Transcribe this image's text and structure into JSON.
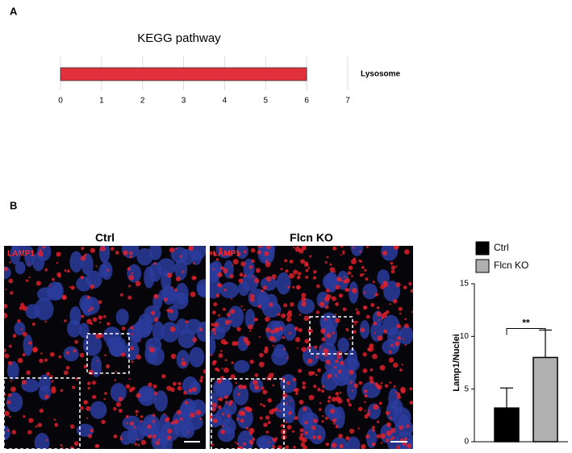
{
  "panel_labels": [
    "A",
    "B"
  ],
  "images": [
    {
      "title": "Ctrl",
      "stain": "LAMP1"
    },
    {
      "title": "Flcn KO",
      "stain": "LAMP1"
    }
  ],
  "chart_data": [
    {
      "type": "barh",
      "title": "KEGG pathway",
      "categories": [
        "Lysosome"
      ],
      "values": [
        6
      ],
      "color": "#e0313c",
      "xlim": [
        0,
        7
      ],
      "xticks": [
        0,
        1,
        2,
        3,
        4,
        5,
        6,
        7
      ],
      "grid": true
    },
    {
      "type": "bar",
      "ylabel": "Lamp1/Nuclei",
      "categories": [
        null
      ],
      "series": [
        {
          "name": "Ctrl",
          "color": "#000000",
          "values": [
            3.2
          ],
          "errors": [
            1.9
          ]
        },
        {
          "name": "Flcn KO",
          "color": "#b0b0b0",
          "values": [
            8.0
          ],
          "errors": [
            2.6
          ]
        }
      ],
      "ylim": [
        0,
        15
      ],
      "yticks": [
        0,
        5,
        10,
        15
      ],
      "annotation": "**"
    }
  ]
}
